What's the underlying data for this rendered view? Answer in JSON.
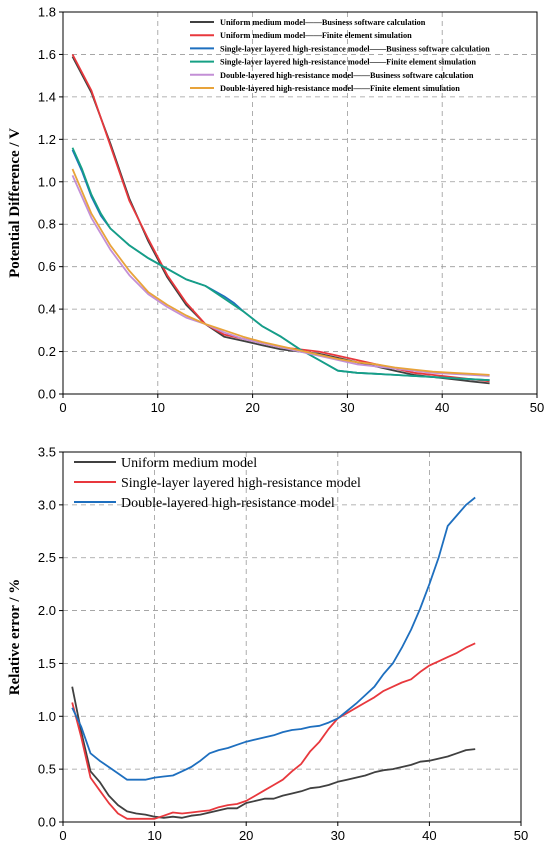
{
  "chart_data": [
    {
      "type": "line",
      "title": "",
      "xlabel": "",
      "ylabel": "Potential Difference / V",
      "xlim": [
        0,
        50
      ],
      "ylim": [
        0,
        1.8
      ],
      "xticks": [
        0,
        10,
        20,
        30,
        40,
        50
      ],
      "yticks": [
        0.0,
        0.2,
        0.4,
        0.6,
        0.8,
        1.0,
        1.2,
        1.4,
        1.6,
        1.8
      ],
      "grid": true,
      "legend_position": "top-right",
      "series": [
        {
          "name": "Uniform medium model——Business software calculation",
          "color": "#404040",
          "x": [
            1,
            3,
            5,
            7,
            9,
            11,
            13,
            15,
            17,
            19,
            21,
            23,
            25,
            27,
            29,
            31,
            33,
            35,
            37,
            39,
            41,
            43,
            45
          ],
          "y": [
            1.59,
            1.42,
            1.18,
            0.92,
            0.72,
            0.55,
            0.42,
            0.33,
            0.27,
            0.25,
            0.23,
            0.21,
            0.2,
            0.19,
            0.17,
            0.15,
            0.13,
            0.11,
            0.09,
            0.08,
            0.07,
            0.06,
            0.05
          ]
        },
        {
          "name": "Uniform medium model——Finite element simulation",
          "color": "#e8383d",
          "x": [
            1,
            3,
            5,
            7,
            9,
            11,
            13,
            15,
            17,
            19,
            21,
            23,
            25,
            27,
            29,
            31,
            33,
            35,
            37,
            39,
            41,
            43,
            45
          ],
          "y": [
            1.6,
            1.43,
            1.17,
            0.91,
            0.73,
            0.56,
            0.43,
            0.33,
            0.28,
            0.26,
            0.24,
            0.22,
            0.21,
            0.2,
            0.18,
            0.16,
            0.14,
            0.12,
            0.1,
            0.09,
            0.08,
            0.07,
            0.06
          ]
        },
        {
          "name": "Single-layer layered high-resistance model——Business software calculation",
          "color": "#1e6fbf",
          "x": [
            1,
            2,
            3,
            4,
            5,
            7,
            9,
            11,
            13,
            15,
            17,
            18,
            19,
            21,
            23,
            25,
            27,
            29,
            31,
            33,
            35,
            37,
            39,
            41,
            43,
            45
          ],
          "y": [
            1.15,
            1.05,
            0.93,
            0.84,
            0.78,
            0.7,
            0.64,
            0.59,
            0.54,
            0.51,
            0.46,
            0.43,
            0.39,
            0.32,
            0.27,
            0.21,
            0.16,
            0.11,
            0.1,
            0.095,
            0.09,
            0.085,
            0.08,
            0.075,
            0.07,
            0.065
          ]
        },
        {
          "name": "Single-layer layered high-resistance model——Finite element simulation",
          "color": "#16a085",
          "x": [
            1,
            2,
            3,
            4,
            5,
            7,
            9,
            11,
            13,
            15,
            17,
            18,
            19,
            21,
            23,
            25,
            27,
            29,
            31,
            33,
            35,
            37,
            39,
            41,
            43,
            45
          ],
          "y": [
            1.16,
            1.06,
            0.94,
            0.85,
            0.78,
            0.7,
            0.64,
            0.59,
            0.54,
            0.51,
            0.45,
            0.42,
            0.39,
            0.32,
            0.27,
            0.21,
            0.16,
            0.11,
            0.1,
            0.095,
            0.09,
            0.085,
            0.08,
            0.075,
            0.07,
            0.065
          ]
        },
        {
          "name": "Double-layered high-resistance model——Business software calculation",
          "color": "#c38fd6",
          "x": [
            1,
            3,
            5,
            7,
            9,
            11,
            13,
            15,
            17,
            19,
            21,
            23,
            25,
            27,
            29,
            31,
            33,
            35,
            37,
            39,
            41,
            43,
            45
          ],
          "y": [
            1.03,
            0.83,
            0.68,
            0.56,
            0.47,
            0.41,
            0.36,
            0.33,
            0.29,
            0.26,
            0.24,
            0.22,
            0.2,
            0.18,
            0.16,
            0.14,
            0.13,
            0.12,
            0.11,
            0.1,
            0.095,
            0.09,
            0.085
          ]
        },
        {
          "name": "Double-layered high-resistance model——Finite element simulation",
          "color": "#e8a33a",
          "x": [
            1,
            3,
            5,
            7,
            9,
            11,
            13,
            15,
            17,
            19,
            21,
            23,
            25,
            27,
            29,
            31,
            33,
            35,
            37,
            39,
            41,
            43,
            45
          ],
          "y": [
            1.06,
            0.85,
            0.7,
            0.58,
            0.48,
            0.42,
            0.37,
            0.33,
            0.3,
            0.27,
            0.245,
            0.225,
            0.205,
            0.185,
            0.165,
            0.15,
            0.14,
            0.125,
            0.115,
            0.105,
            0.1,
            0.095,
            0.09
          ]
        }
      ]
    },
    {
      "type": "line",
      "title": "",
      "xlabel": "",
      "ylabel": "Relative error / %",
      "xlim": [
        0,
        50
      ],
      "ylim": [
        0,
        3.5
      ],
      "xticks": [
        0,
        10,
        20,
        30,
        40,
        50
      ],
      "yticks": [
        0.0,
        0.5,
        1.0,
        1.5,
        2.0,
        2.5,
        3.0,
        3.5
      ],
      "grid": true,
      "legend_position": "top-left",
      "series": [
        {
          "name": "Uniform medium model",
          "color": "#404040",
          "x": [
            1,
            2,
            3,
            4,
            5,
            6,
            7,
            8,
            9,
            10,
            11,
            12,
            13,
            14,
            15,
            16,
            17,
            18,
            19,
            20,
            21,
            22,
            23,
            24,
            25,
            26,
            27,
            28,
            29,
            30,
            31,
            32,
            33,
            34,
            35,
            36,
            37,
            38,
            39,
            40,
            41,
            42,
            43,
            44,
            45
          ],
          "y": [
            1.28,
            0.85,
            0.48,
            0.38,
            0.25,
            0.16,
            0.1,
            0.08,
            0.07,
            0.05,
            0.04,
            0.05,
            0.04,
            0.06,
            0.07,
            0.09,
            0.11,
            0.13,
            0.13,
            0.18,
            0.2,
            0.22,
            0.22,
            0.25,
            0.27,
            0.29,
            0.32,
            0.33,
            0.35,
            0.38,
            0.4,
            0.42,
            0.44,
            0.47,
            0.49,
            0.5,
            0.52,
            0.54,
            0.57,
            0.58,
            0.6,
            0.62,
            0.65,
            0.68,
            0.69
          ]
        },
        {
          "name": "Single-layer layered high-resistance model",
          "color": "#e8383d",
          "x": [
            1,
            2,
            3,
            4,
            5,
            6,
            7,
            8,
            9,
            10,
            11,
            12,
            13,
            14,
            15,
            16,
            17,
            18,
            19,
            20,
            21,
            22,
            23,
            24,
            25,
            26,
            27,
            28,
            29,
            30,
            31,
            32,
            33,
            34,
            35,
            36,
            37,
            38,
            39,
            40,
            41,
            42,
            43,
            44,
            45
          ],
          "y": [
            1.13,
            0.8,
            0.42,
            0.3,
            0.18,
            0.08,
            0.03,
            0.03,
            0.03,
            0.03,
            0.06,
            0.09,
            0.08,
            0.09,
            0.1,
            0.11,
            0.14,
            0.16,
            0.17,
            0.2,
            0.25,
            0.3,
            0.35,
            0.4,
            0.48,
            0.55,
            0.67,
            0.76,
            0.88,
            0.98,
            1.03,
            1.08,
            1.13,
            1.18,
            1.24,
            1.28,
            1.32,
            1.35,
            1.42,
            1.48,
            1.52,
            1.56,
            1.6,
            1.65,
            1.69
          ]
        },
        {
          "name": "Double-layered high-resistance model",
          "color": "#1e6fbf",
          "x": [
            1,
            2,
            3,
            4,
            5,
            6,
            7,
            8,
            9,
            10,
            11,
            12,
            13,
            14,
            15,
            16,
            17,
            18,
            19,
            20,
            21,
            22,
            23,
            24,
            25,
            26,
            27,
            28,
            29,
            30,
            31,
            32,
            33,
            34,
            35,
            36,
            37,
            38,
            39,
            40,
            41,
            42,
            43,
            44,
            45
          ],
          "y": [
            1.08,
            0.9,
            0.65,
            0.58,
            0.52,
            0.46,
            0.4,
            0.4,
            0.4,
            0.42,
            0.43,
            0.44,
            0.48,
            0.52,
            0.58,
            0.65,
            0.68,
            0.7,
            0.73,
            0.76,
            0.78,
            0.8,
            0.82,
            0.85,
            0.87,
            0.88,
            0.9,
            0.91,
            0.94,
            0.98,
            1.05,
            1.12,
            1.2,
            1.28,
            1.4,
            1.5,
            1.65,
            1.82,
            2.02,
            2.25,
            2.5,
            2.8,
            2.9,
            3.0,
            3.07
          ]
        }
      ]
    }
  ]
}
